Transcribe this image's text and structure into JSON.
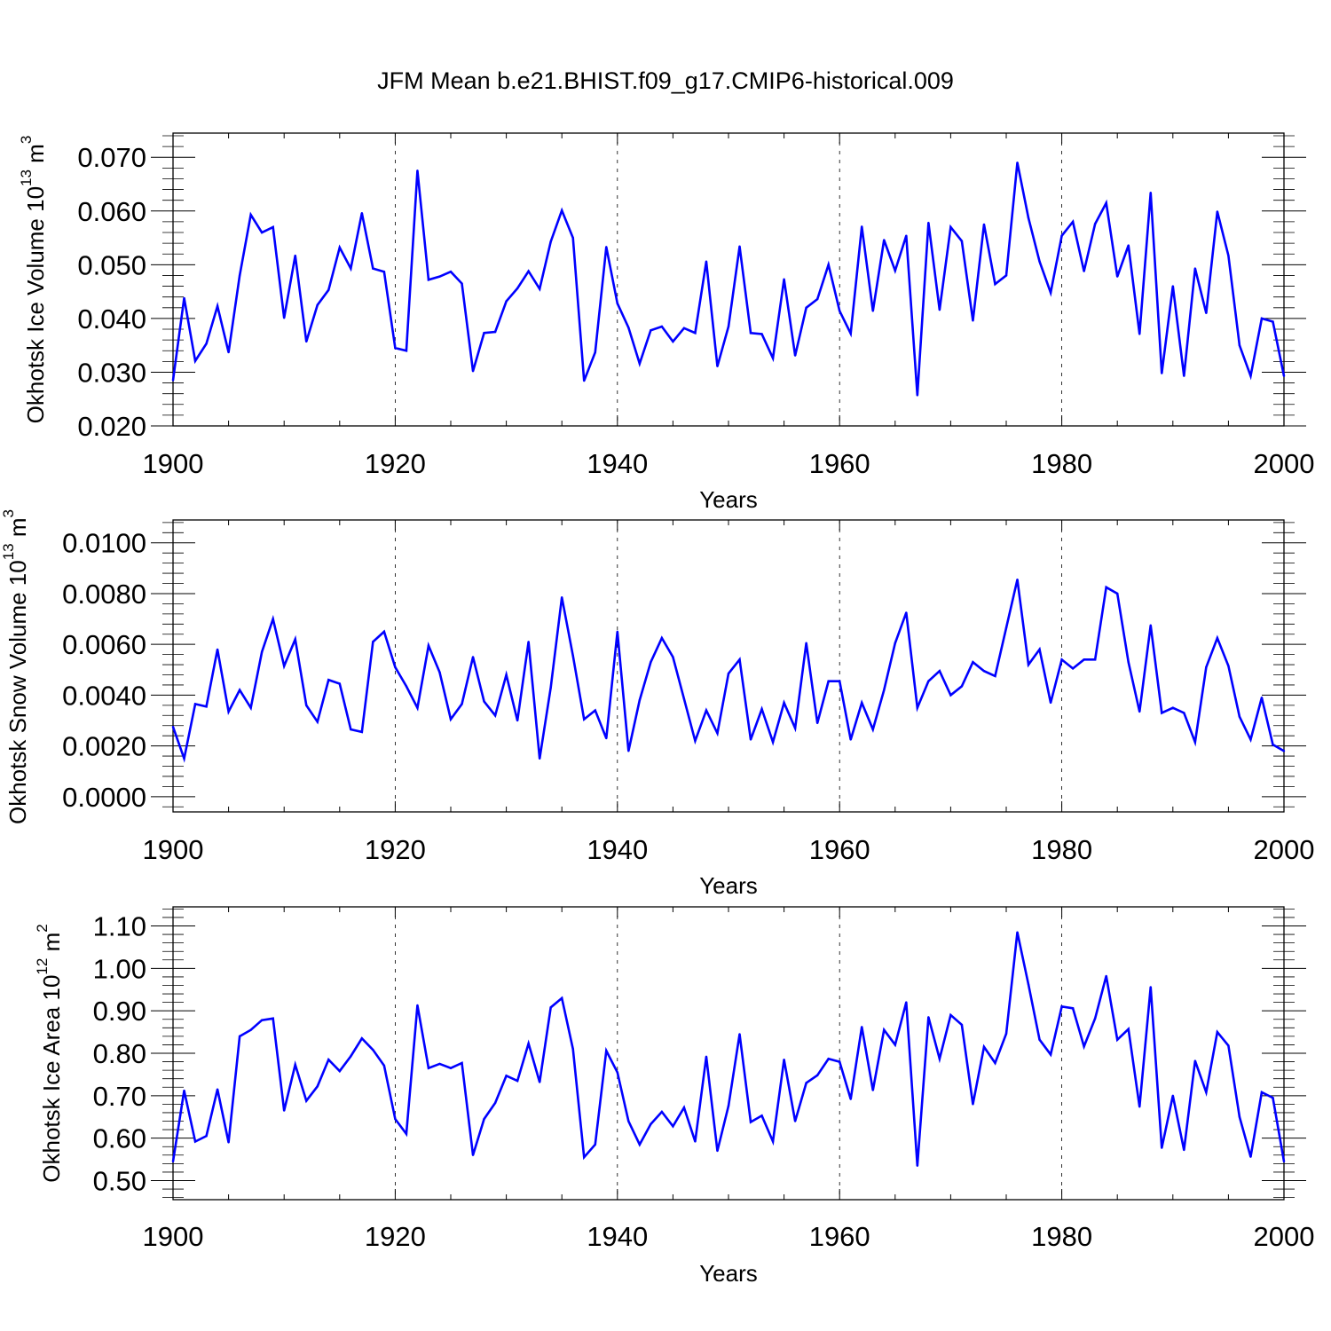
{
  "title": "JFM Mean b.e21.BHIST.f09_g17.CMIP6-historical.009",
  "colors": {
    "line": "#0000ff",
    "axis": "#000000",
    "grid": "#000000"
  },
  "chart_data": [
    {
      "type": "line",
      "name": "ice-volume",
      "ylabel_text": "Okhotsk Ice Volume 10",
      "ylabel_exp": "13",
      "ylabel_unit": "m",
      "ylabel_unit_exp": "3",
      "xlabel": "Years",
      "xlim": [
        1900,
        2000
      ],
      "ylim": [
        0.02,
        0.0745
      ],
      "xticks": [
        "1900",
        "1920",
        "1940",
        "1960",
        "1980",
        "2000"
      ],
      "yticks": [
        "0.020",
        "0.030",
        "0.040",
        "0.050",
        "0.060",
        "0.070"
      ],
      "ytick_values": [
        0.02,
        0.03,
        0.04,
        0.05,
        0.06,
        0.07
      ],
      "grid_x": [
        1920,
        1940,
        1960,
        1980
      ],
      "x_start": 1900,
      "values": [
        0.0285,
        0.0438,
        0.0321,
        0.0353,
        0.0423,
        0.0337,
        0.048,
        0.0593,
        0.056,
        0.057,
        0.0401,
        0.0517,
        0.0357,
        0.0425,
        0.0453,
        0.0532,
        0.0493,
        0.0596,
        0.0493,
        0.0487,
        0.0345,
        0.034,
        0.0675,
        0.0472,
        0.0478,
        0.0487,
        0.0465,
        0.0302,
        0.0373,
        0.0375,
        0.0432,
        0.0456,
        0.0488,
        0.0455,
        0.0543,
        0.0601,
        0.055,
        0.0284,
        0.0337,
        0.0533,
        0.0428,
        0.0383,
        0.0316,
        0.0378,
        0.0385,
        0.0357,
        0.0382,
        0.0373,
        0.0506,
        0.0311,
        0.0385,
        0.0534,
        0.0373,
        0.0371,
        0.0326,
        0.0473,
        0.0331,
        0.042,
        0.0436,
        0.05,
        0.0414,
        0.0372,
        0.0571,
        0.0414,
        0.0546,
        0.0489,
        0.0554,
        0.0257,
        0.0578,
        0.0416,
        0.057,
        0.0544,
        0.0396,
        0.0575,
        0.0464,
        0.048,
        0.069,
        0.0587,
        0.0506,
        0.0448,
        0.0554,
        0.058,
        0.0488,
        0.0576,
        0.0615,
        0.0478,
        0.0536,
        0.0371,
        0.0634,
        0.0298,
        0.046,
        0.0293,
        0.0493,
        0.041,
        0.0599,
        0.0517,
        0.035,
        0.0293,
        0.04,
        0.0394,
        0.0293
      ]
    },
    {
      "type": "line",
      "name": "snow-volume",
      "ylabel_text": "Okhotsk Snow Volume 10",
      "ylabel_exp": "13",
      "ylabel_unit": "m",
      "ylabel_unit_exp": "3",
      "xlabel": "Years",
      "xlim": [
        1900,
        2000
      ],
      "ylim": [
        -0.0006,
        0.0109
      ],
      "xticks": [
        "1900",
        "1920",
        "1940",
        "1960",
        "1980",
        "2000"
      ],
      "yticks": [
        "0.0000",
        "0.0020",
        "0.0040",
        "0.0060",
        "0.0080",
        "0.0100"
      ],
      "ytick_values": [
        0.0,
        0.002,
        0.004,
        0.006,
        0.008,
        0.01
      ],
      "grid_x": [
        1920,
        1940,
        1960,
        1980
      ],
      "x_start": 1900,
      "values": [
        0.00275,
        0.0015,
        0.00365,
        0.00355,
        0.0058,
        0.00335,
        0.0042,
        0.0035,
        0.0057,
        0.007,
        0.00515,
        0.0062,
        0.0036,
        0.00295,
        0.0046,
        0.00445,
        0.00265,
        0.00255,
        0.0061,
        0.0065,
        0.0051,
        0.00435,
        0.0035,
        0.00595,
        0.0049,
        0.00305,
        0.00365,
        0.0055,
        0.00375,
        0.0032,
        0.0048,
        0.003,
        0.0061,
        0.0015,
        0.0043,
        0.00785,
        0.00555,
        0.00305,
        0.0034,
        0.0023,
        0.0065,
        0.0018,
        0.0038,
        0.0053,
        0.00625,
        0.0055,
        0.00385,
        0.0022,
        0.0034,
        0.0025,
        0.00485,
        0.0054,
        0.00225,
        0.00345,
        0.00215,
        0.0037,
        0.0027,
        0.00605,
        0.0029,
        0.00455,
        0.00455,
        0.00225,
        0.0037,
        0.00265,
        0.0042,
        0.00605,
        0.00725,
        0.0035,
        0.00455,
        0.00495,
        0.004,
        0.00435,
        0.0053,
        0.00495,
        0.00475,
        0.00665,
        0.00855,
        0.0052,
        0.0058,
        0.0037,
        0.0054,
        0.00505,
        0.0054,
        0.0054,
        0.00825,
        0.008,
        0.0053,
        0.00335,
        0.00675,
        0.0033,
        0.0035,
        0.0033,
        0.00215,
        0.0051,
        0.00625,
        0.00515,
        0.00315,
        0.00225,
        0.0039,
        0.00205,
        0.0018
      ]
    },
    {
      "type": "line",
      "name": "ice-area",
      "ylabel_text": "Okhotsk Ice Area 10",
      "ylabel_exp": "12",
      "ylabel_unit": "m",
      "ylabel_unit_exp": "2",
      "xlabel": "Years",
      "xlim": [
        1900,
        2000
      ],
      "ylim": [
        0.455,
        1.145
      ],
      "xticks": [
        "1900",
        "1920",
        "1940",
        "1960",
        "1980",
        "2000"
      ],
      "yticks": [
        "0.50",
        "0.60",
        "0.70",
        "0.80",
        "0.90",
        "1.00",
        "1.10"
      ],
      "ytick_values": [
        0.5,
        0.6,
        0.7,
        0.8,
        0.9,
        1.0,
        1.1
      ],
      "grid_x": [
        1920,
        1940,
        1960,
        1980
      ],
      "x_start": 1900,
      "values": [
        0.545,
        0.712,
        0.592,
        0.605,
        0.715,
        0.59,
        0.84,
        0.855,
        0.878,
        0.882,
        0.665,
        0.773,
        0.688,
        0.722,
        0.785,
        0.758,
        0.793,
        0.835,
        0.808,
        0.771,
        0.645,
        0.61,
        0.913,
        0.765,
        0.775,
        0.765,
        0.777,
        0.56,
        0.645,
        0.683,
        0.747,
        0.735,
        0.823,
        0.732,
        0.908,
        0.93,
        0.81,
        0.555,
        0.585,
        0.806,
        0.755,
        0.64,
        0.585,
        0.633,
        0.662,
        0.628,
        0.672,
        0.592,
        0.792,
        0.57,
        0.676,
        0.845,
        0.638,
        0.653,
        0.592,
        0.785,
        0.64,
        0.73,
        0.748,
        0.787,
        0.78,
        0.692,
        0.862,
        0.713,
        0.855,
        0.82,
        0.92,
        0.535,
        0.885,
        0.787,
        0.89,
        0.867,
        0.68,
        0.815,
        0.777,
        0.846,
        1.085,
        0.962,
        0.832,
        0.797,
        0.91,
        0.906,
        0.816,
        0.882,
        0.982,
        0.832,
        0.857,
        0.674,
        0.956,
        0.577,
        0.7,
        0.572,
        0.782,
        0.708,
        0.85,
        0.818,
        0.65,
        0.556,
        0.708,
        0.695,
        0.545
      ]
    }
  ]
}
